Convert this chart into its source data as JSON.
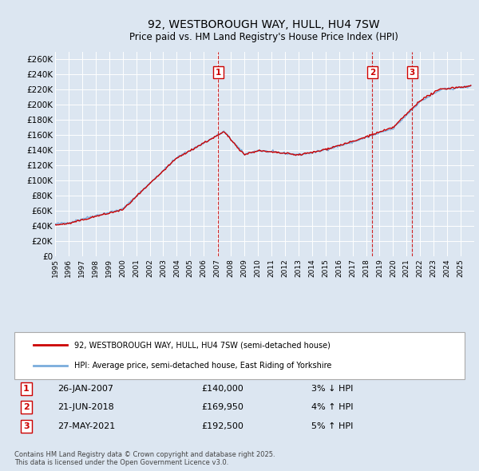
{
  "title": "92, WESTBOROUGH WAY, HULL, HU4 7SW",
  "subtitle": "Price paid vs. HM Land Registry's House Price Index (HPI)",
  "ylim": [
    0,
    270000
  ],
  "yticks": [
    0,
    20000,
    40000,
    60000,
    80000,
    100000,
    120000,
    140000,
    160000,
    180000,
    200000,
    220000,
    240000,
    260000
  ],
  "background_color": "#dce6f1",
  "grid_color": "#ffffff",
  "hpi_color": "#7aaddc",
  "price_color": "#cc0000",
  "legend_label_price": "92, WESTBOROUGH WAY, HULL, HU4 7SW (semi-detached house)",
  "legend_label_hpi": "HPI: Average price, semi-detached house, East Riding of Yorkshire",
  "transaction_dates": [
    2007.07,
    2018.47,
    2021.41
  ],
  "transaction_labels": [
    "1",
    "2",
    "3"
  ],
  "transaction_infos": [
    {
      "label": "1",
      "date": "26-JAN-2007",
      "price": "£140,000",
      "pct": "3% ↓ HPI"
    },
    {
      "label": "2",
      "date": "21-JUN-2018",
      "price": "£169,950",
      "pct": "4% ↑ HPI"
    },
    {
      "label": "3",
      "date": "27-MAY-2021",
      "price": "£192,500",
      "pct": "5% ↑ HPI"
    }
  ],
  "footer": "Contains HM Land Registry data © Crown copyright and database right 2025.\nThis data is licensed under the Open Government Licence v3.0.",
  "xmin": 1995,
  "xmax": 2026
}
